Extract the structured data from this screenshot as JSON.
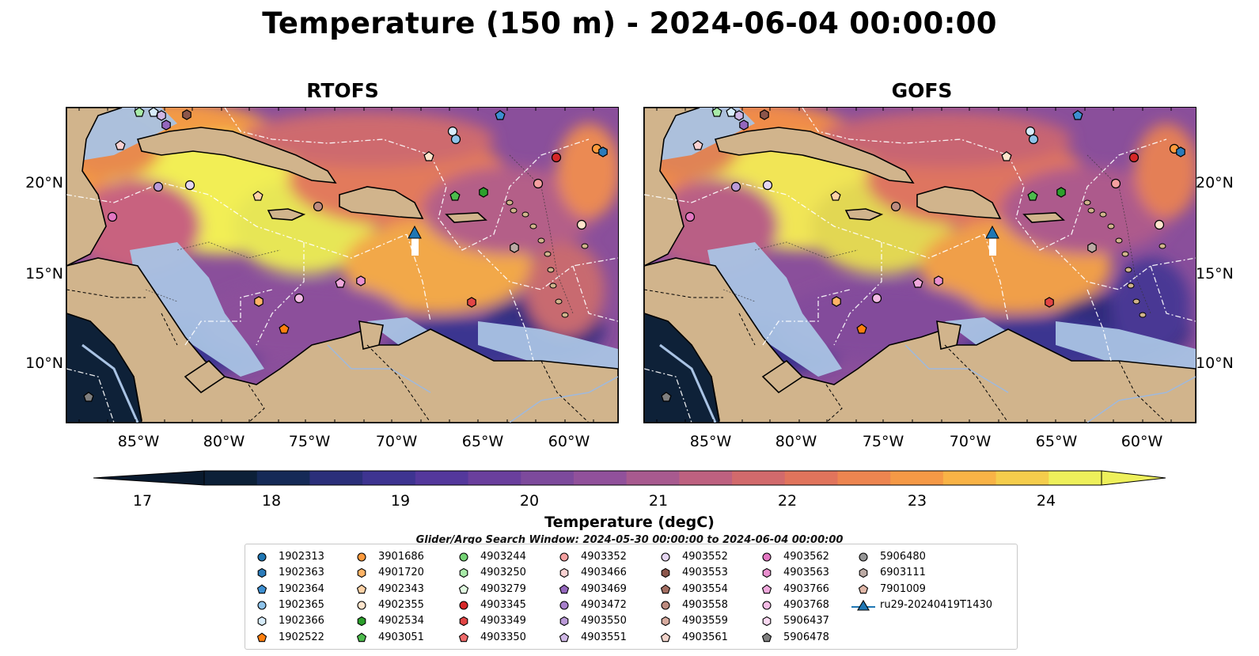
{
  "title": "Temperature (150 m) - 2024-06-04 00:00:00",
  "panels": [
    {
      "title": "RTOFS"
    },
    {
      "title": "GOFS"
    }
  ],
  "axes": {
    "lat_ticks": [
      "20°N",
      "15°N",
      "10°N"
    ],
    "lon_ticks": [
      "85°W",
      "80°W",
      "75°W",
      "70°W",
      "65°W",
      "60°W"
    ]
  },
  "colorbar": {
    "label": "Temperature (degC)",
    "ticks": [
      "17",
      "18",
      "19",
      "20",
      "21",
      "22",
      "23",
      "24"
    ],
    "min": 16.5,
    "max": 24.5,
    "colors": [
      "#0c2038",
      "#152a57",
      "#2b2f7a",
      "#3e3491",
      "#54389c",
      "#6a3f9d",
      "#7d4a9c",
      "#91519b",
      "#a85a8f",
      "#be6180",
      "#d26a6c",
      "#e1745c",
      "#ed8550",
      "#f59946",
      "#f9b346",
      "#f5cd4c",
      "#eef05b"
    ]
  },
  "search_window": "Glider/Argo Search Window: 2024-05-30 00:00:00 to 2024-06-04 00:00:00",
  "legend": [
    {
      "label": "1902313",
      "marker": "circle",
      "color": "#1f77b4"
    },
    {
      "label": "1902363",
      "marker": "hexagon",
      "color": "#2b7bba"
    },
    {
      "label": "1902364",
      "marker": "pentagon",
      "color": "#3d8fd1"
    },
    {
      "label": "1902365",
      "marker": "circle",
      "color": "#8ec3ea"
    },
    {
      "label": "1902366",
      "marker": "hexagon",
      "color": "#d7ecfa"
    },
    {
      "label": "1902522",
      "marker": "pentagon",
      "color": "#ff7f0e"
    },
    {
      "label": "3901686",
      "marker": "circle",
      "color": "#ff9a3c"
    },
    {
      "label": "4901720",
      "marker": "hexagon",
      "color": "#ffb366"
    },
    {
      "label": "4902343",
      "marker": "pentagon",
      "color": "#ffd2a6"
    },
    {
      "label": "4902355",
      "marker": "circle",
      "color": "#ffe4cc"
    },
    {
      "label": "4902534",
      "marker": "hexagon",
      "color": "#2ca02c"
    },
    {
      "label": "4903051",
      "marker": "pentagon",
      "color": "#4cbb4c"
    },
    {
      "label": "4903244",
      "marker": "circle",
      "color": "#74d374"
    },
    {
      "label": "4903250",
      "marker": "hexagon",
      "color": "#a8eba8"
    },
    {
      "label": "4903279",
      "marker": "pentagon",
      "color": "#e1fbe1"
    },
    {
      "label": "4903345",
      "marker": "circle",
      "color": "#d62728"
    },
    {
      "label": "4903349",
      "marker": "hexagon",
      "color": "#e24545"
    },
    {
      "label": "4903350",
      "marker": "pentagon",
      "color": "#ee6a6a"
    },
    {
      "label": "4903352",
      "marker": "circle",
      "color": "#f5a0a0"
    },
    {
      "label": "4903466",
      "marker": "hexagon",
      "color": "#fbd2d2"
    },
    {
      "label": "4903469",
      "marker": "pentagon",
      "color": "#9467bd"
    },
    {
      "label": "4903472",
      "marker": "circle",
      "color": "#a77fcb"
    },
    {
      "label": "4903550",
      "marker": "hexagon",
      "color": "#bb9ad8"
    },
    {
      "label": "4903551",
      "marker": "pentagon",
      "color": "#cfb7e5"
    },
    {
      "label": "4903552",
      "marker": "circle",
      "color": "#e5d6f2"
    },
    {
      "label": "4903553",
      "marker": "hexagon",
      "color": "#8c564b"
    },
    {
      "label": "4903554",
      "marker": "pentagon",
      "color": "#a46e62"
    },
    {
      "label": "4903558",
      "marker": "circle",
      "color": "#bd8b7f"
    },
    {
      "label": "4903559",
      "marker": "hexagon",
      "color": "#d7ab9f"
    },
    {
      "label": "4903561",
      "marker": "pentagon",
      "color": "#f0d2c9"
    },
    {
      "label": "4903562",
      "marker": "circle",
      "color": "#e377c2"
    },
    {
      "label": "4903563",
      "marker": "hexagon",
      "color": "#ea8fcf"
    },
    {
      "label": "4903766",
      "marker": "pentagon",
      "color": "#f0a8dc"
    },
    {
      "label": "4903768",
      "marker": "circle",
      "color": "#f4bce5"
    },
    {
      "label": "5906437",
      "marker": "hexagon",
      "color": "#fad8f1"
    },
    {
      "label": "5906478",
      "marker": "pentagon",
      "color": "#7f7f7f"
    },
    {
      "label": "5906480",
      "marker": "circle",
      "color": "#969696"
    },
    {
      "label": "6903111",
      "marker": "hexagon",
      "color": "#bcaaa4"
    },
    {
      "label": "7901009",
      "marker": "pentagon",
      "color": "#e0b7a8"
    },
    {
      "label": "ru29-20240419T1430",
      "marker": "triangle-line",
      "color": "#1f77b4"
    }
  ]
}
